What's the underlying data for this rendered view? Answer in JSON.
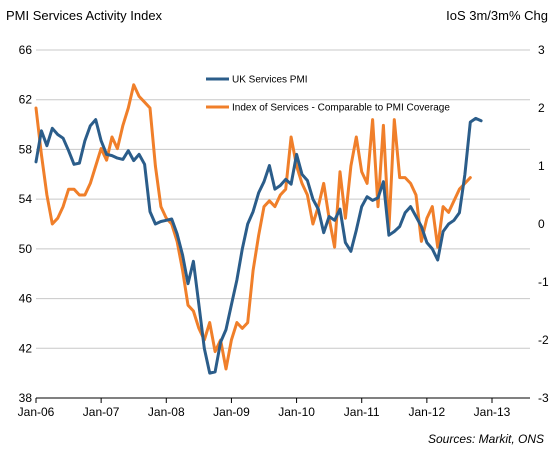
{
  "header": {
    "left_title": "PMI Services Activity Index",
    "right_title": "IoS 3m/3m% Chg"
  },
  "footer": {
    "source": "Sources: Markit, ONS"
  },
  "chart_data": {
    "type": "line",
    "title": "PMI Services Activity Index",
    "y2label": "IoS 3m/3m% Chg",
    "xlabel": "",
    "ylabel": "",
    "x_tick_labels": [
      "Jan-06",
      "Jan-07",
      "Jan-08",
      "Jan-09",
      "Jan-10",
      "Jan-11",
      "Jan-12",
      "Jan-13"
    ],
    "ylim": [
      38,
      66
    ],
    "y_ticks": [
      38,
      42,
      46,
      50,
      54,
      58,
      62,
      66
    ],
    "y2lim": [
      -3,
      3
    ],
    "y2_ticks": [
      -3,
      -2,
      -1,
      0,
      1,
      2,
      3
    ],
    "grid": true,
    "legend_position": "top-center",
    "colors": {
      "uk_pmi": "#2b5d8a",
      "ios": "#f07f2a",
      "grid": "#c8c8c8"
    },
    "series": [
      {
        "name": "UK Services PMI",
        "axis": "left",
        "start": "2006-01",
        "values": [
          57.0,
          59.5,
          58.3,
          59.7,
          59.2,
          58.9,
          57.9,
          56.8,
          56.9,
          58.7,
          59.9,
          60.4,
          58.7,
          57.6,
          57.5,
          57.3,
          57.2,
          57.9,
          57.1,
          57.6,
          56.8,
          53.0,
          52.0,
          52.2,
          52.3,
          52.4,
          51.2,
          49.5,
          47.2,
          49.0,
          45.5,
          42.0,
          40.0,
          40.1,
          42.5,
          43.5,
          45.5,
          47.5,
          50.0,
          52.0,
          53.0,
          54.5,
          55.4,
          56.7,
          54.8,
          55.1,
          55.6,
          55.2,
          57.6,
          56.0,
          55.5,
          54.0,
          53.2,
          51.3,
          52.6,
          52.3,
          53.2,
          50.5,
          49.8,
          51.5,
          53.4,
          54.2,
          53.9,
          54.1,
          55.4,
          51.1,
          51.4,
          51.8,
          52.9,
          53.4,
          52.6,
          51.8,
          50.5,
          50.0,
          49.1,
          51.4,
          52.0,
          52.3,
          52.9,
          56.0,
          60.2,
          60.5,
          60.3
        ]
      },
      {
        "name": "Index of Services - Comparable to PMI Coverage",
        "axis": "right",
        "start": "2006-01",
        "values": [
          2.0,
          1.2,
          0.5,
          0.0,
          0.1,
          0.3,
          0.6,
          0.6,
          0.5,
          0.5,
          0.7,
          1.0,
          1.3,
          1.1,
          1.5,
          1.3,
          1.7,
          2.0,
          2.4,
          2.2,
          2.1,
          2.0,
          1.0,
          0.3,
          0.1,
          0.0,
          -0.3,
          -0.8,
          -1.4,
          -1.5,
          -1.8,
          -2.0,
          -1.7,
          -2.2,
          -2.0,
          -2.5,
          -2.0,
          -1.7,
          -1.8,
          -1.7,
          -0.8,
          -0.2,
          0.3,
          0.4,
          0.3,
          0.5,
          0.6,
          1.5,
          1.0,
          0.7,
          0.5,
          0.0,
          0.3,
          0.7,
          0.1,
          -0.4,
          0.9,
          0.1,
          1.0,
          1.5,
          0.9,
          0.7,
          1.8,
          0.3,
          1.7,
          -0.1,
          1.8,
          0.8,
          0.8,
          0.7,
          0.5,
          -0.3,
          0.1,
          0.3,
          -0.4,
          0.3,
          0.2,
          0.4,
          0.6,
          0.7,
          0.8
        ]
      }
    ]
  }
}
